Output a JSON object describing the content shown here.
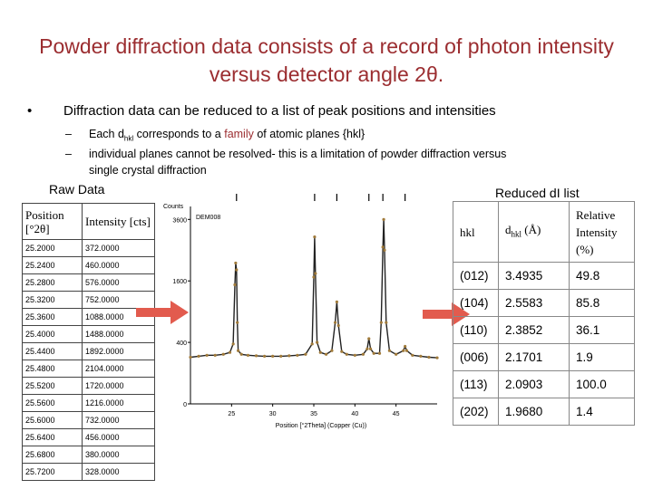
{
  "title": "Powder diffraction data consists of a record of photon intensity versus detector angle 2θ.",
  "bullet": "Diffraction data can be reduced to a list of peak positions and intensities",
  "sub_bullets": {
    "line1_pre": "Each d",
    "line1_sub": "hkl",
    "line1_mid": " corresponds to a ",
    "line1_family": "family",
    "line1_post": " of atomic planes {hkl}",
    "line2": "individual planes cannot be resolved- this is a limitation of powder diffraction versus",
    "line3": "single crystal diffraction"
  },
  "raw_label": "Raw Data",
  "reduced_label": "Reduced dI list",
  "raw_table": {
    "header_position": "Position [°2θ]",
    "header_intensity": "Intensity [cts]",
    "rows": [
      [
        "25.2000",
        "372.0000"
      ],
      [
        "25.2400",
        "460.0000"
      ],
      [
        "25.2800",
        "576.0000"
      ],
      [
        "25.3200",
        "752.0000"
      ],
      [
        "25.3600",
        "1088.0000"
      ],
      [
        "25.4000",
        "1488.0000"
      ],
      [
        "25.4400",
        "1892.0000"
      ],
      [
        "25.4800",
        "2104.0000"
      ],
      [
        "25.5200",
        "1720.0000"
      ],
      [
        "25.5600",
        "1216.0000"
      ],
      [
        "25.6000",
        "732.0000"
      ],
      [
        "25.6400",
        "456.0000"
      ],
      [
        "25.6800",
        "380.0000"
      ],
      [
        "25.7200",
        "328.0000"
      ]
    ]
  },
  "reduced_table": {
    "header_hkl": "hkl",
    "header_d_pre": "d",
    "header_d_sub": "hkl",
    "header_d_post": " (Å)",
    "header_intensity": "Relative Intensity (%)",
    "rows": [
      [
        "(012)",
        "3.4935",
        "49.8"
      ],
      [
        "(104)",
        "2.5583",
        "85.8"
      ],
      [
        "(110)",
        "2.3852",
        "36.1"
      ],
      [
        "(006)",
        "2.1701",
        "1.9"
      ],
      [
        "(113)",
        "2.0903",
        "100.0"
      ],
      [
        "(202)",
        "1.9680",
        "1.4"
      ]
    ]
  },
  "chart_data": {
    "type": "line",
    "ylabel": "Counts",
    "xlabel": "Position [°2Theta] (Copper (Cu))",
    "sample_label": "DEM008",
    "xlim": [
      20,
      50
    ],
    "ylim": [
      0,
      3900
    ],
    "x_ticks": [
      25,
      30,
      35,
      40,
      45
    ],
    "y_ticks": [
      0,
      400,
      1600,
      3600
    ],
    "y_tick_labels": [
      "0",
      "400",
      "1600",
      "3600"
    ],
    "reference_line_positions": [
      25.6,
      35.1,
      37.8,
      41.7,
      43.4,
      46.1
    ],
    "series": [
      {
        "x": [
          20.0,
          21.0,
          22.0,
          23.0,
          24.0,
          24.8,
          25.2,
          25.4,
          25.5,
          25.6,
          25.7,
          25.8,
          26.2,
          27.0,
          28.0,
          29.0,
          30.0,
          31.0,
          32.0,
          33.0,
          34.0,
          34.8,
          35.0,
          35.1,
          35.2,
          35.4,
          35.8,
          36.5,
          37.2,
          37.6,
          37.8,
          38.0,
          38.4,
          39.0,
          40.0,
          41.0,
          41.5,
          41.7,
          41.9,
          42.3,
          43.0,
          43.2,
          43.4,
          43.5,
          43.6,
          43.8,
          44.2,
          45.0,
          45.9,
          46.1,
          46.3,
          47.0,
          48.0,
          49.0,
          50.0
        ],
        "y": [
          230,
          240,
          250,
          250,
          260,
          280,
          380,
          1500,
          2100,
          1900,
          700,
          300,
          260,
          250,
          245,
          240,
          240,
          240,
          245,
          250,
          260,
          380,
          1700,
          2950,
          1800,
          400,
          280,
          260,
          300,
          700,
          1100,
          650,
          290,
          260,
          250,
          260,
          320,
          450,
          320,
          270,
          270,
          700,
          2600,
          3600,
          2500,
          700,
          300,
          260,
          300,
          350,
          300,
          250,
          240,
          230,
          225
        ]
      }
    ]
  }
}
